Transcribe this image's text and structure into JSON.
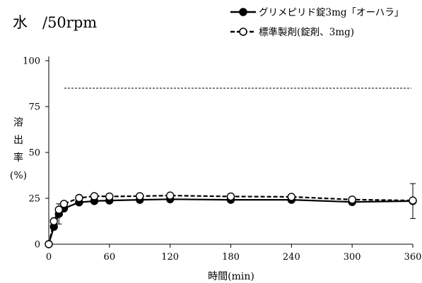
{
  "chart_data": {
    "type": "line",
    "title": "水　/50rpm",
    "xlabel": "時間(min)",
    "ylabel": [
      "溶",
      "出",
      "率",
      "(%)"
    ],
    "xlim": [
      0,
      360
    ],
    "ylim": [
      0,
      100
    ],
    "xticks": [
      0,
      60,
      120,
      180,
      240,
      300,
      360
    ],
    "yticks": [
      0,
      25,
      50,
      75,
      100
    ],
    "reference_line": {
      "y": 85,
      "style": "dashed"
    },
    "grid": false,
    "legend_position": "top-right",
    "series": [
      {
        "name": "グリメピリド錠3mg「オーハラ」",
        "style": "solid",
        "marker": "filled-circle",
        "color": "#000000",
        "x": [
          0,
          5,
          10,
          15,
          30,
          45,
          60,
          90,
          120,
          180,
          240,
          300,
          360
        ],
        "y": [
          0,
          9.5,
          16.5,
          19.5,
          22.8,
          23.5,
          23.8,
          24.2,
          24.5,
          24.2,
          24.2,
          23.0,
          23.5
        ],
        "error": [
          0,
          0,
          5.5,
          0,
          0,
          0,
          0,
          0,
          0,
          0,
          0,
          0,
          9.5
        ]
      },
      {
        "name": "標準製剤(錠剤、3mg)",
        "style": "dashed",
        "marker": "open-circle",
        "color": "#000000",
        "x": [
          0,
          5,
          10,
          15,
          30,
          45,
          60,
          90,
          120,
          180,
          240,
          300,
          360
        ],
        "y": [
          0,
          12.5,
          18.8,
          22.0,
          25.2,
          26.2,
          26.0,
          26.2,
          26.5,
          26.0,
          25.8,
          24.3,
          23.8
        ]
      }
    ]
  }
}
